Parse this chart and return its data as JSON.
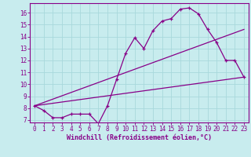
{
  "xlabel": "Windchill (Refroidissement éolien,°C)",
  "bg_color": "#c8ecee",
  "grid_color": "#a8d8dc",
  "line_color": "#880088",
  "spine_color": "#880088",
  "xlim": [
    -0.5,
    23.5
  ],
  "ylim": [
    6.8,
    16.8
  ],
  "xticks": [
    0,
    1,
    2,
    3,
    4,
    5,
    6,
    7,
    8,
    9,
    10,
    11,
    12,
    13,
    14,
    15,
    16,
    17,
    18,
    19,
    20,
    21,
    22,
    23
  ],
  "yticks": [
    7,
    8,
    9,
    10,
    11,
    12,
    13,
    14,
    15,
    16
  ],
  "curve1_x": [
    0,
    1,
    2,
    3,
    4,
    5,
    6,
    7,
    8,
    9,
    10,
    11,
    12,
    13,
    14,
    15,
    16,
    17,
    18,
    19,
    20,
    21,
    22,
    23
  ],
  "curve1_y": [
    8.2,
    7.8,
    7.2,
    7.2,
    7.5,
    7.5,
    7.5,
    6.7,
    8.2,
    10.4,
    12.6,
    13.9,
    13.0,
    14.5,
    15.3,
    15.5,
    16.3,
    16.4,
    15.9,
    14.6,
    13.5,
    12.0,
    12.0,
    10.6
  ],
  "curve2_x": [
    0,
    23
  ],
  "curve2_y": [
    8.2,
    10.6
  ],
  "curve3_x": [
    0,
    23
  ],
  "curve3_y": [
    8.2,
    14.6
  ],
  "tick_fontsize": 5.5,
  "xlabel_fontsize": 6.0
}
